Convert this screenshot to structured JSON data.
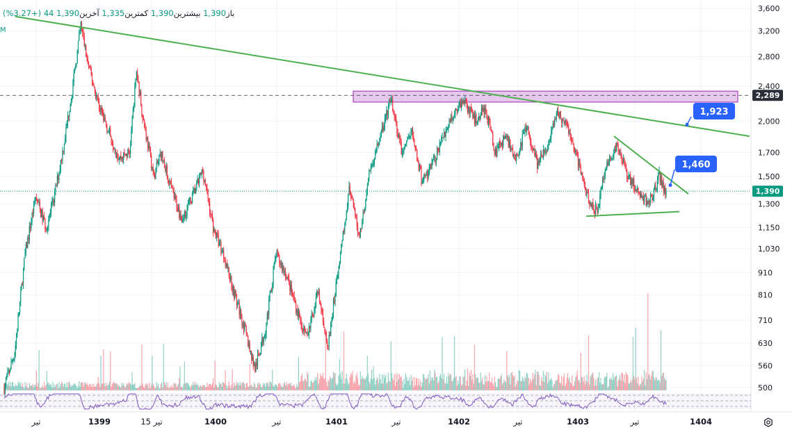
{
  "header": {
    "open_label": "باز",
    "open_value": "1,390",
    "high_label": "بیشترین",
    "high_value": "1,390",
    "low_label": "کمترین",
    "low_value": "1,335",
    "close_label": "آخرین",
    "close_value": "1,390",
    "change_value": "44 (+3.27%)",
    "indicator_letter": "M"
  },
  "colors": {
    "up": "#089981",
    "down": "#f23645",
    "trendline": "#4caf50",
    "zone_fill": "#e1bee7",
    "zone_border": "#9c27b0",
    "callout": "#2962ff",
    "oscillator": "#7e57c2",
    "axis_text": "#131722"
  },
  "chart_data": {
    "type": "candlestick",
    "y_scale": "log",
    "ylim": [
      480,
      3700
    ],
    "y_ticks": [
      "3,600",
      "3,200",
      "2,800",
      "2,400",
      "2,000",
      "1,700",
      "1,500",
      "1,300",
      "1,150",
      "1,030",
      "910",
      "810",
      "710",
      "630",
      "560",
      "500"
    ],
    "x_ticks": [
      "تیر",
      "1399",
      "15 تیر",
      "1400",
      "تیر",
      "1401",
      "تیر",
      "1402",
      "تیر",
      "1403",
      "تیر",
      "1404"
    ],
    "price_path": [
      [
        0,
        500
      ],
      [
        3,
        600
      ],
      [
        6,
        1000
      ],
      [
        9,
        1350
      ],
      [
        12,
        1150
      ],
      [
        14,
        1300
      ],
      [
        17,
        1750
      ],
      [
        20,
        2500
      ],
      [
        22,
        3300
      ],
      [
        24,
        2700
      ],
      [
        27,
        2200
      ],
      [
        30,
        1900
      ],
      [
        33,
        1650
      ],
      [
        36,
        1700
      ],
      [
        38,
        2600
      ],
      [
        40,
        2000
      ],
      [
        43,
        1500
      ],
      [
        45,
        1700
      ],
      [
        48,
        1400
      ],
      [
        51,
        1200
      ],
      [
        54,
        1350
      ],
      [
        57,
        1550
      ],
      [
        60,
        1150
      ],
      [
        63,
        1000
      ],
      [
        66,
        820
      ],
      [
        69,
        680
      ],
      [
        72,
        550
      ],
      [
        75,
        680
      ],
      [
        78,
        1000
      ],
      [
        81,
        900
      ],
      [
        84,
        750
      ],
      [
        87,
        650
      ],
      [
        90,
        820
      ],
      [
        93,
        620
      ],
      [
        96,
        950
      ],
      [
        99,
        1400
      ],
      [
        102,
        1100
      ],
      [
        105,
        1550
      ],
      [
        108,
        1850
      ],
      [
        111,
        2250
      ],
      [
        114,
        1700
      ],
      [
        117,
        1900
      ],
      [
        120,
        1450
      ],
      [
        123,
        1600
      ],
      [
        126,
        1850
      ],
      [
        129,
        2100
      ],
      [
        132,
        2250
      ],
      [
        135,
        2000
      ],
      [
        138,
        2150
      ],
      [
        141,
        1700
      ],
      [
        144,
        1850
      ],
      [
        147,
        1650
      ],
      [
        150,
        1950
      ],
      [
        153,
        1600
      ],
      [
        156,
        1750
      ],
      [
        159,
        2100
      ],
      [
        162,
        1900
      ],
      [
        165,
        1600
      ],
      [
        168,
        1300
      ],
      [
        170,
        1250
      ],
      [
        173,
        1600
      ],
      [
        176,
        1750
      ],
      [
        179,
        1500
      ],
      [
        182,
        1400
      ],
      [
        185,
        1300
      ],
      [
        188,
        1500
      ],
      [
        190,
        1390
      ]
    ],
    "price_path_note_units": "bar index, price",
    "resistance_zone": {
      "from": 2210,
      "to": 2340,
      "label": "2,289"
    },
    "resistance_level": "2,289",
    "last_price": "1,390",
    "trendlines": [
      {
        "name": "long-descending",
        "from_price": 3450,
        "to_price": 1850
      },
      {
        "name": "short-descending",
        "from_price": 1850,
        "to_price": 1370
      },
      {
        "name": "support",
        "from_price": 1220,
        "to_price": 1250
      }
    ],
    "callouts": [
      "1,923",
      "1,460"
    ],
    "oscillator": true,
    "volume": true
  }
}
